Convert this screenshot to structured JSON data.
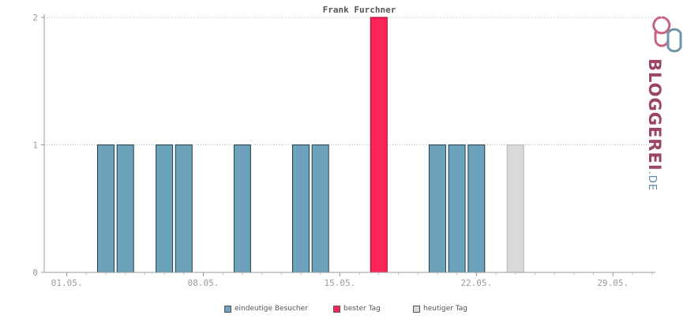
{
  "chart_data": {
    "type": "bar",
    "title": "Frank Furchner",
    "xlabel": "",
    "ylabel": "",
    "x_ticks": [
      "01.05.",
      "08.05.",
      "15.05.",
      "22.05.",
      "29.05."
    ],
    "y_ticks": [
      "0",
      "1",
      "2"
    ],
    "ylim": [
      0,
      2
    ],
    "grid": "horizontal dotted",
    "legend_position": "bottom",
    "series": [
      {
        "name": "eindeutige Besucher",
        "color": "#6ca2bb",
        "points": [
          {
            "x": "03.05.",
            "y": 1
          },
          {
            "x": "04.05.",
            "y": 1
          },
          {
            "x": "06.05.",
            "y": 1
          },
          {
            "x": "07.05.",
            "y": 1
          },
          {
            "x": "10.05.",
            "y": 1
          },
          {
            "x": "13.05.",
            "y": 1
          },
          {
            "x": "14.05.",
            "y": 1
          },
          {
            "x": "20.05.",
            "y": 1
          },
          {
            "x": "21.05.",
            "y": 1
          },
          {
            "x": "22.05.",
            "y": 1
          }
        ]
      },
      {
        "name": "bester Tag",
        "color": "#ff2458",
        "points": [
          {
            "x": "17.05.",
            "y": 2
          }
        ]
      },
      {
        "name": "heutiger Tag",
        "color": "#d9d9d9",
        "points": [
          {
            "x": "24.05.",
            "y": 1
          }
        ]
      }
    ]
  },
  "logo": {
    "text_main": "BLOGGEREI",
    "text_suffix": ".DE",
    "color_main": "#9c4468",
    "color_suffix": "#5f8aa1"
  }
}
